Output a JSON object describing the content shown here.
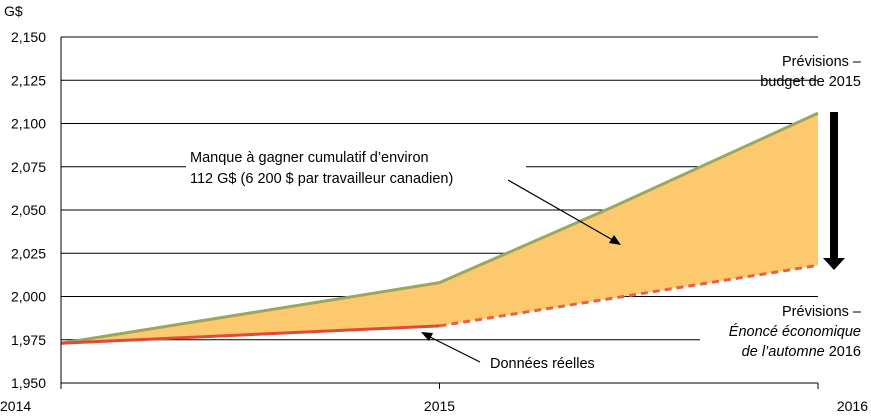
{
  "chart_data": {
    "type": "area",
    "ylabel": "G$",
    "ylim": [
      1950,
      2150
    ],
    "xlim": [
      2014,
      2016
    ],
    "y_ticks": [
      "1,950",
      "1,975",
      "2,000",
      "2,025",
      "2,050",
      "2,075",
      "2,100",
      "2,125",
      "2,150"
    ],
    "y_tick_values": [
      1950,
      1975,
      2000,
      2025,
      2050,
      2075,
      2100,
      2125,
      2150
    ],
    "x_ticks": [
      "2014",
      "2015",
      "2016"
    ],
    "x_tick_values": [
      2014,
      2015,
      2016
    ],
    "grid": true,
    "series": [
      {
        "name": "Prévisions – budget de 2015",
        "color": "#9aa760",
        "x": [
          2014,
          2015,
          2015.45,
          2016
        ],
        "values": [
          1973,
          2008,
          2051,
          2106
        ]
      },
      {
        "name": "Données réelles",
        "color": "#e04a3a",
        "x": [
          2014,
          2015
        ],
        "values": [
          1973,
          1983
        ]
      },
      {
        "name": "Prévisions – Énoncé économique de l'automne 2016",
        "color": "#e8604a",
        "x": [
          2015,
          2016
        ],
        "values": [
          1983,
          2018
        ]
      }
    ],
    "fill_color": "#fdc96e",
    "annotations": {
      "budget_line1": "Prévisions –",
      "budget_line2": "budget de 2015",
      "shortfall_line1": "Manque à gagner cumulatif d’environ",
      "shortfall_line2": "112 G$ (6 200 $ par travailleur canadien)",
      "fes_line1": "Prévisions –",
      "fes_line2": "Énoncé économique",
      "fes_line3_italic": "de l’automne",
      "fes_line3_rest": " 2016",
      "actual": "Données réelles"
    }
  }
}
